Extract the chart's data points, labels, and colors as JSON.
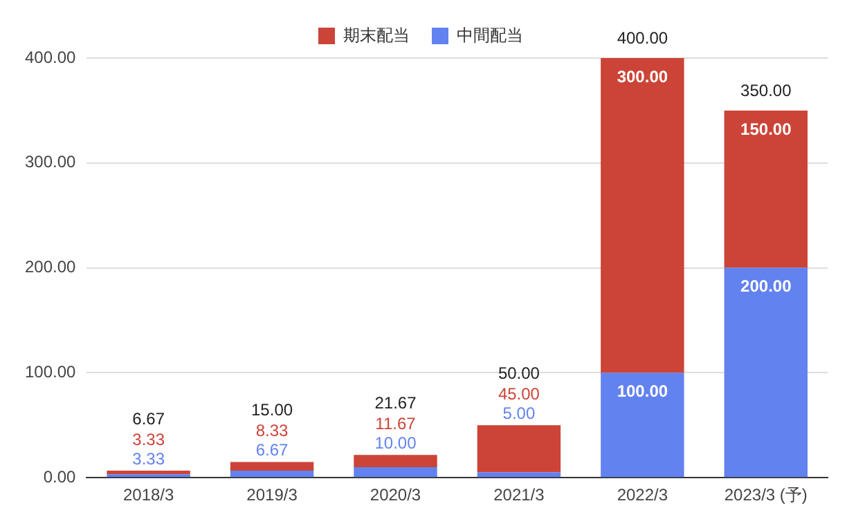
{
  "chart_data": {
    "type": "bar",
    "stacked": true,
    "categories": [
      "2018/3",
      "2019/3",
      "2020/3",
      "2021/3",
      "2022/3",
      "2023/3 (予)"
    ],
    "series": [
      {
        "name": "中間配当",
        "color": "#6282f0",
        "values": [
          3.33,
          6.67,
          10.0,
          5.0,
          100.0,
          200.0
        ],
        "value_labels": [
          "3.33",
          "6.67",
          "10.00",
          "5.00",
          "100.00",
          "200.00"
        ]
      },
      {
        "name": "期末配当",
        "color": "#cc4437",
        "values": [
          3.33,
          8.33,
          11.67,
          45.0,
          300.0,
          150.0
        ],
        "value_labels": [
          "3.33",
          "8.33",
          "11.67",
          "45.00",
          "300.00",
          "150.00"
        ]
      }
    ],
    "totals": [
      "6.67",
      "15.00",
      "21.67",
      "50.00",
      "400.00",
      "350.00"
    ],
    "ylim": [
      0,
      400
    ],
    "yticks": [
      {
        "value": 0,
        "label": "0.00"
      },
      {
        "value": 100,
        "label": "100.00"
      },
      {
        "value": 200,
        "label": "200.00"
      },
      {
        "value": 300,
        "label": "300.00"
      },
      {
        "value": 400,
        "label": "400.00"
      }
    ],
    "grid": "y",
    "legend": "top"
  }
}
